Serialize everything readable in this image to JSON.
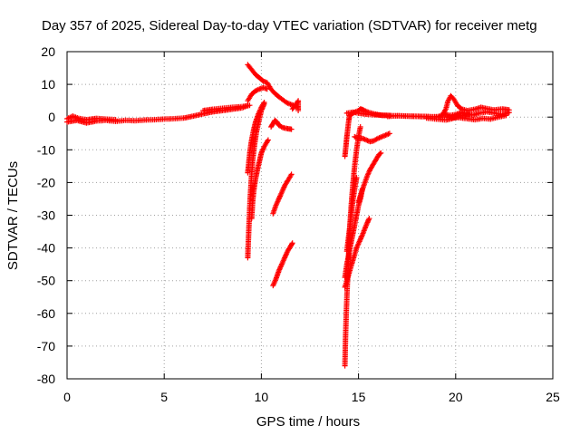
{
  "chart_data": {
    "type": "scatter",
    "title": "Day 357 of 2025, Sidereal Day-to-day VTEC variation (SDTVAR) for receiver metg",
    "xlabel": "GPS time / hours",
    "ylabel": "SDTVAR / TECUs",
    "xlim": [
      0,
      25
    ],
    "ylim": [
      -80,
      20
    ],
    "xticks": [
      0,
      5,
      10,
      15,
      20,
      25
    ],
    "yticks": [
      20,
      10,
      0,
      -10,
      -20,
      -30,
      -40,
      -50,
      -60,
      -70,
      -80
    ],
    "grid": true,
    "marker": "+",
    "series": [
      {
        "name": "SDTVAR",
        "color": "#ff0000",
        "segments": [
          [
            [
              0.0,
              -1.5
            ],
            [
              0.5,
              -1.0
            ],
            [
              1.0,
              -1.8
            ],
            [
              1.5,
              -1.2
            ],
            [
              2.0,
              -1.0
            ],
            [
              2.5,
              -1.3
            ],
            [
              3.0,
              -1.0
            ],
            [
              3.5,
              -1.1
            ],
            [
              4.0,
              -0.9
            ],
            [
              4.5,
              -0.8
            ],
            [
              5.0,
              -0.6
            ],
            [
              5.5,
              -0.5
            ],
            [
              6.0,
              -0.3
            ],
            [
              6.5,
              0.3
            ],
            [
              7.0,
              1.0
            ],
            [
              7.5,
              1.6
            ],
            [
              8.0,
              2.0
            ],
            [
              8.5,
              2.4
            ],
            [
              9.0,
              2.8
            ],
            [
              9.3,
              3.5
            ]
          ],
          [
            [
              0.0,
              -0.5
            ],
            [
              0.3,
              0.3
            ],
            [
              0.6,
              -0.4
            ],
            [
              1.0,
              -0.8
            ],
            [
              1.5,
              -0.4
            ],
            [
              2.0,
              -0.6
            ],
            [
              2.5,
              -0.8
            ]
          ],
          [
            [
              7.0,
              2.0
            ],
            [
              7.5,
              2.4
            ],
            [
              8.0,
              2.7
            ],
            [
              8.5,
              3.0
            ],
            [
              9.0,
              3.2
            ],
            [
              9.4,
              3.6
            ]
          ],
          [
            [
              9.3,
              16.0
            ],
            [
              9.5,
              14.5
            ],
            [
              9.7,
              13.0
            ],
            [
              9.9,
              12.0
            ],
            [
              10.1,
              11.0
            ],
            [
              10.3,
              10.5
            ],
            [
              10.5,
              8.5
            ],
            [
              10.7,
              7.2
            ],
            [
              10.9,
              6.2
            ],
            [
              11.1,
              5.3
            ],
            [
              11.3,
              4.4
            ],
            [
              11.5,
              3.9
            ],
            [
              11.7,
              3.5
            ],
            [
              11.85,
              3.2
            ]
          ],
          [
            [
              9.3,
              5.0
            ],
            [
              9.5,
              7.0
            ],
            [
              9.7,
              8.0
            ],
            [
              9.9,
              8.6
            ],
            [
              10.1,
              9.0
            ],
            [
              10.3,
              8.6
            ]
          ],
          [
            [
              9.3,
              -43.0
            ],
            [
              9.33,
              -38.0
            ],
            [
              9.37,
              -32.0
            ],
            [
              9.42,
              -25.0
            ],
            [
              9.48,
              -19.0
            ],
            [
              9.55,
              -13.5
            ],
            [
              9.65,
              -8.5
            ],
            [
              9.75,
              -4.5
            ],
            [
              9.88,
              -1.0
            ],
            [
              10.0,
              2.0
            ],
            [
              10.15,
              4.0
            ]
          ],
          [
            [
              9.3,
              -17.0
            ],
            [
              9.35,
              -14.0
            ],
            [
              9.42,
              -10.0
            ],
            [
              9.5,
              -7.0
            ],
            [
              9.6,
              -4.0
            ],
            [
              9.7,
              -1.5
            ],
            [
              9.85,
              1.0
            ],
            [
              10.0,
              3.0
            ],
            [
              10.15,
              4.5
            ]
          ],
          [
            [
              9.5,
              -31.0
            ],
            [
              9.55,
              -26.0
            ],
            [
              9.62,
              -22.0
            ],
            [
              9.7,
              -19.0
            ],
            [
              9.8,
              -16.0
            ],
            [
              9.9,
              -13.5
            ],
            [
              10.0,
              -11.0
            ],
            [
              10.15,
              -9.0
            ],
            [
              10.35,
              -7.0
            ]
          ],
          [
            [
              10.5,
              -3.0
            ],
            [
              10.6,
              -2.0
            ],
            [
              10.7,
              -1.0
            ],
            [
              10.8,
              -1.5
            ],
            [
              10.9,
              -2.5
            ],
            [
              11.1,
              -3.2
            ],
            [
              11.3,
              -3.5
            ],
            [
              11.55,
              -3.7
            ]
          ],
          [
            [
              10.6,
              -29.5
            ],
            [
              10.75,
              -27.0
            ],
            [
              10.9,
              -25.0
            ],
            [
              11.05,
              -23.0
            ],
            [
              11.2,
              -21.0
            ],
            [
              11.35,
              -19.5
            ],
            [
              11.55,
              -17.5
            ]
          ],
          [
            [
              10.6,
              -51.5
            ],
            [
              10.75,
              -49.5
            ],
            [
              10.9,
              -47.0
            ],
            [
              11.05,
              -45.0
            ],
            [
              11.2,
              -43.0
            ],
            [
              11.35,
              -41.0
            ],
            [
              11.5,
              -39.5
            ],
            [
              11.6,
              -38.5
            ]
          ],
          [
            [
              11.6,
              2.5
            ],
            [
              11.75,
              3.5
            ],
            [
              11.9,
              5.0
            ],
            [
              11.9,
              2.0
            ]
          ],
          [
            [
              14.3,
              -12.0
            ],
            [
              14.35,
              -9.0
            ],
            [
              14.4,
              -6.0
            ],
            [
              14.45,
              -3.5
            ],
            [
              14.5,
              -1.0
            ],
            [
              14.55,
              0.5
            ],
            [
              14.65,
              1.0
            ],
            [
              14.8,
              1.5
            ],
            [
              15.0,
              2.0
            ],
            [
              15.1,
              2.5
            ],
            [
              15.2,
              2.3
            ],
            [
              15.3,
              2.0
            ],
            [
              15.5,
              1.5
            ],
            [
              15.8,
              1.0
            ],
            [
              16.2,
              0.5
            ],
            [
              16.6,
              0.5
            ]
          ],
          [
            [
              14.4,
              1.2
            ],
            [
              14.7,
              1.5
            ],
            [
              15.0,
              1.2
            ],
            [
              15.5,
              0.8
            ],
            [
              16.5,
              0.5
            ],
            [
              17.5,
              0.3
            ],
            [
              18.5,
              0.2
            ],
            [
              19.5,
              0.0
            ],
            [
              20.0,
              -0.2
            ]
          ],
          [
            [
              14.3,
              -76.0
            ],
            [
              14.33,
              -68.0
            ],
            [
              14.37,
              -60.0
            ],
            [
              14.42,
              -52.0
            ],
            [
              14.47,
              -45.0
            ],
            [
              14.52,
              -38.0
            ],
            [
              14.58,
              -31.0
            ],
            [
              14.65,
              -25.0
            ],
            [
              14.72,
              -20.0
            ],
            [
              14.8,
              -15.0
            ],
            [
              14.9,
              -10.0
            ],
            [
              15.0,
              -6.0
            ],
            [
              15.1,
              -3.0
            ]
          ],
          [
            [
              14.3,
              -49.0
            ],
            [
              14.4,
              -45.0
            ],
            [
              14.5,
              -42.0
            ],
            [
              14.6,
              -39.0
            ],
            [
              14.7,
              -36.0
            ],
            [
              14.8,
              -33.0
            ],
            [
              14.9,
              -30.0
            ],
            [
              15.0,
              -27.0
            ],
            [
              15.1,
              -25.0
            ],
            [
              15.2,
              -22.0
            ]
          ],
          [
            [
              14.3,
              -52.0
            ],
            [
              14.45,
              -49.0
            ],
            [
              14.6,
              -46.0
            ],
            [
              14.75,
              -43.0
            ],
            [
              14.9,
              -40.0
            ],
            [
              15.05,
              -38.0
            ],
            [
              15.2,
              -36.0
            ],
            [
              15.4,
              -33.0
            ],
            [
              15.55,
              -31.0
            ]
          ],
          [
            [
              14.4,
              -41.0
            ],
            [
              14.5,
              -36.0
            ],
            [
              14.6,
              -31.0
            ],
            [
              14.7,
              -26.0
            ],
            [
              14.8,
              -22.0
            ],
            [
              14.9,
              -18.5
            ]
          ],
          [
            [
              15.0,
              -26.0
            ],
            [
              15.15,
              -23.0
            ],
            [
              15.3,
              -20.5
            ],
            [
              15.45,
              -18.0
            ],
            [
              15.6,
              -16.0
            ],
            [
              15.75,
              -14.5
            ],
            [
              15.9,
              -13.0
            ],
            [
              16.05,
              -11.5
            ],
            [
              16.15,
              -11.0
            ]
          ],
          [
            [
              14.8,
              -6.0
            ],
            [
              15.0,
              -6.5
            ],
            [
              15.2,
              -6.5
            ],
            [
              15.4,
              -7.0
            ],
            [
              15.6,
              -7.5
            ],
            [
              15.8,
              -7.2
            ],
            [
              16.0,
              -6.5
            ],
            [
              16.2,
              -6.0
            ],
            [
              16.4,
              -5.5
            ],
            [
              16.6,
              -5.0
            ]
          ],
          [
            [
              16.5,
              0.2
            ],
            [
              17.0,
              0.4
            ],
            [
              17.5,
              0.3
            ],
            [
              18.0,
              0.2
            ],
            [
              18.5,
              0.1
            ],
            [
              19.0,
              0.0
            ],
            [
              19.3,
              0.5
            ],
            [
              19.5,
              2.5
            ],
            [
              19.6,
              4.8
            ],
            [
              19.75,
              6.5
            ],
            [
              19.9,
              5.5
            ],
            [
              20.1,
              3.5
            ],
            [
              20.3,
              2.5
            ],
            [
              20.6,
              2.0
            ],
            [
              21.0,
              2.4
            ],
            [
              21.3,
              3.0
            ],
            [
              21.6,
              2.6
            ],
            [
              22.0,
              2.2
            ],
            [
              22.4,
              2.5
            ],
            [
              22.75,
              2.2
            ]
          ],
          [
            [
              19.4,
              1.0
            ],
            [
              19.7,
              0.5
            ],
            [
              20.0,
              0.8
            ],
            [
              20.3,
              1.5
            ],
            [
              20.6,
              1.0
            ],
            [
              20.9,
              0.6
            ],
            [
              21.2,
              1.2
            ],
            [
              21.6,
              1.6
            ],
            [
              22.0,
              1.2
            ],
            [
              22.4,
              0.8
            ],
            [
              22.75,
              1.4
            ]
          ],
          [
            [
              19.8,
              0.0
            ],
            [
              20.2,
              -0.2
            ],
            [
              20.6,
              -0.5
            ],
            [
              21.0,
              -0.8
            ],
            [
              21.4,
              -0.4
            ],
            [
              21.8,
              -0.6
            ],
            [
              22.2,
              0.0
            ],
            [
              22.6,
              0.5
            ]
          ],
          [
            [
              18.5,
              -0.3
            ],
            [
              19.0,
              -0.6
            ],
            [
              19.5,
              -0.9
            ],
            [
              19.8,
              -0.5
            ],
            [
              20.2,
              0.3
            ],
            [
              20.7,
              0.8
            ]
          ]
        ]
      }
    ]
  }
}
